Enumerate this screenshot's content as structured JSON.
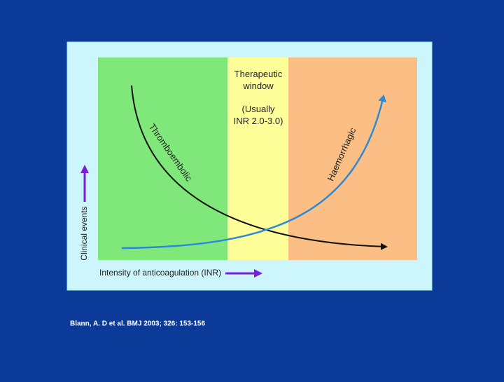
{
  "window_title": [
    "Therapeutic",
    "window"
  ],
  "window_note": [
    "(Usually",
    "INR 2.0-3.0)"
  ],
  "curves": {
    "falling": "Thromboembolic",
    "rising": "Haemorrhagic"
  },
  "y_label": "Clinical events",
  "x_label": "Intensity of anticoagulation (INR)",
  "citation": "Blann, A. D et al. BMJ 2003; 326: 153-156"
}
